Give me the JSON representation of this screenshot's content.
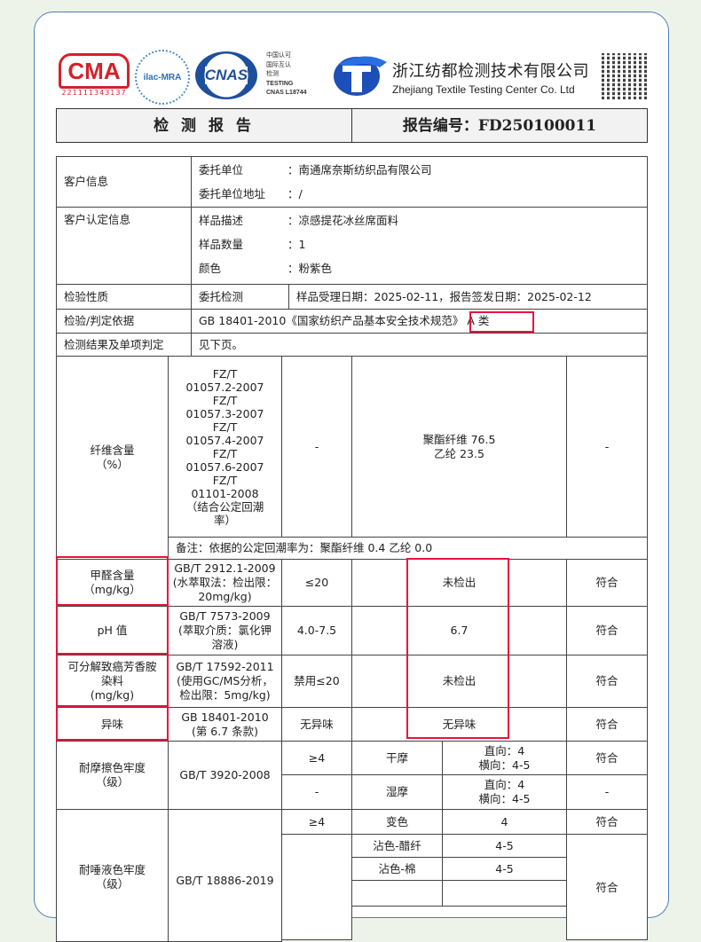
{
  "header": {
    "cma_text": "CMA",
    "cma_number": "221111343137",
    "ilac_text": "ilac-MRA",
    "cnas_text": "CNAS",
    "cnas_lines": [
      "中国认可",
      "国际互认",
      "检测",
      "TESTING",
      "CNAS L18744"
    ],
    "company_cn": "浙江纺都检测技术有限公司",
    "company_en": "Zhejiang Textile Testing Center Co. Ltd",
    "report_title": "检 测 报 告",
    "report_number": "报告编号：FD250100011"
  },
  "info": {
    "customer_label": "客户信息",
    "client_label": "委托单位",
    "client_value": "：南通席奈斯纺织品有限公司",
    "client_address_label": "委托单位地址",
    "client_address_value": "：/",
    "sample_label": "客户认定信息",
    "desc_label": "样品描述",
    "desc_value": "：凉感提花冰丝席面料",
    "qty_label": "样品数量",
    "qty_value": "：1",
    "color_label": "颜色",
    "color_value": "：粉紫色",
    "nature_label": "检验性质",
    "nature_value": "委托检测",
    "dates": "样品受理日期：2025-02-11，报告签发日期：2025-02-12",
    "basis_label": "检验/判定依据",
    "basis_value": "GB 18401-2010《国家纺织产品基本安全技术规范》",
    "basis_class": "A 类",
    "result_label": "检测结果及单项判定",
    "result_value": "见下页。"
  },
  "rows": {
    "fiber": {
      "item": "纤维含量\n（%）",
      "method": "FZ/T\n01057.2-2007\nFZ/T\n01057.3-2007\nFZ/T\n01057.4-2007\nFZ/T\n01057.6-2007\nFZ/T\n01101-2008\n（结合公定回潮\n率）",
      "req": "-",
      "result": "聚酯纤维 76.5\n乙纶 23.5",
      "verdict": "-",
      "note": "备注：依据的公定回潮率为：聚酯纤维 0.4  乙纶 0.0"
    },
    "formaldehyde": {
      "item": "甲醛含量\n（mg/kg）",
      "method": "GB/T 2912.1-2009\n(水萃取法：检出限：\n20mg/kg)",
      "req": "≤20",
      "result": "未检出",
      "verdict": "符合"
    },
    "ph": {
      "item": "pH 值",
      "method": "GB/T 7573-2009\n(萃取介质：氯化钾\n溶液)",
      "req": "4.0-7.5",
      "result": "6.7",
      "verdict": "符合"
    },
    "amine": {
      "item": "可分解致癌芳香胺\n染料\n(mg/kg)",
      "method": "GB/T 17592-2011\n(使用GC/MS分析，\n检出限：5mg/kg)",
      "req": "禁用≤20",
      "result": "未检出",
      "verdict": "符合"
    },
    "odor": {
      "item": "异味",
      "method": "GB 18401-2010\n(第 6.7 条款)",
      "req": "无异味",
      "result": "无异味",
      "verdict": "符合"
    },
    "rub": {
      "item": "耐摩擦色牢度\n（级）",
      "method": "GB/T 3920-2008",
      "dry": {
        "req": "≥4",
        "type": "干摩",
        "result": "直向：4\n横向：4-5",
        "verdict": "符合"
      },
      "wet": {
        "req": "-",
        "type": "湿摩",
        "result": "直向：4\n横向：4-5",
        "verdict": "-"
      }
    },
    "saliva": {
      "item": "耐唾液色牢度\n（级）",
      "method": "GB/T 18886-2019",
      "change": {
        "req": "≥4",
        "type": "变色",
        "result": "4",
        "verdict": "符合"
      },
      "acetate": {
        "type": "沾色-醋纤",
        "result": "4-5"
      },
      "cotton": {
        "type": "沾色-棉",
        "result": "4-5"
      },
      "stain_verdict": "符合"
    }
  },
  "colors": {
    "highlight": "#e8133c",
    "card_border": "#4a7fb0",
    "background": "#eef3ea"
  }
}
